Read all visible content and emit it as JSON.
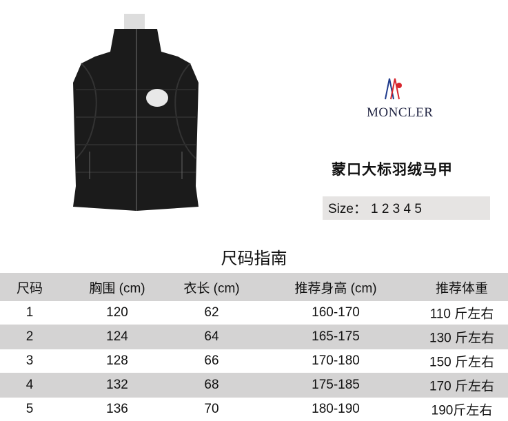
{
  "brand": {
    "name": "MONCLER",
    "logo_colors": [
      "#1f3b8c",
      "#d8262e"
    ]
  },
  "product": {
    "title": "蒙口大标羽绒马甲",
    "size_label": "Size：",
    "sizes": "1 2 3 4 5"
  },
  "size_guide": {
    "title": "尺码指南",
    "headers": [
      "尺码",
      "胸围 (cm)",
      "衣长 (cm)",
      "推荐身高 (cm)",
      "推荐体重"
    ],
    "rows": [
      [
        "1",
        "120",
        "62",
        "160-170",
        "110 斤左右"
      ],
      [
        "2",
        "124",
        "64",
        "165-175",
        "130 斤左右"
      ],
      [
        "3",
        "128",
        "66",
        "170-180",
        "150 斤左右"
      ],
      [
        "4",
        "132",
        "68",
        "175-185",
        "170 斤左右"
      ],
      [
        "5",
        "136",
        "70",
        "180-190",
        "190斤左右"
      ]
    ]
  }
}
